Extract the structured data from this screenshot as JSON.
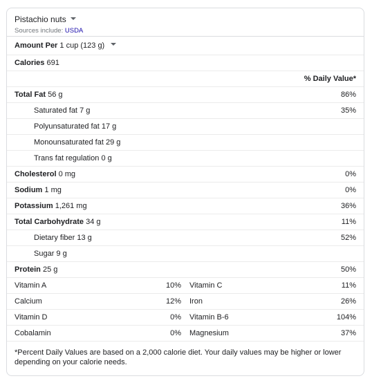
{
  "food": {
    "name": "Pistachio nuts",
    "sources_prefix": "Sources include: ",
    "source_link": "USDA"
  },
  "amount": {
    "label": "Amount Per",
    "serving": "1 cup (123 g)"
  },
  "calories": {
    "label": "Calories",
    "value": "691"
  },
  "dv_header": "% Daily Value*",
  "nutrients": [
    {
      "label": "Total Fat",
      "amount": "56 g",
      "dv": "86%",
      "bold": true
    },
    {
      "label": "Saturated fat",
      "amount": "7 g",
      "dv": "35%",
      "bold": false
    },
    {
      "label": "Polyunsaturated fat",
      "amount": "17 g",
      "dv": "",
      "bold": false
    },
    {
      "label": "Monounsaturated fat",
      "amount": "29 g",
      "dv": "",
      "bold": false
    },
    {
      "label": "Trans fat regulation",
      "amount": "0 g",
      "dv": "",
      "bold": false
    },
    {
      "label": "Cholesterol",
      "amount": "0 mg",
      "dv": "0%",
      "bold": true
    },
    {
      "label": "Sodium",
      "amount": "1 mg",
      "dv": "0%",
      "bold": true
    },
    {
      "label": "Potassium",
      "amount": "1,261 mg",
      "dv": "36%",
      "bold": true
    },
    {
      "label": "Total Carbohydrate",
      "amount": "34 g",
      "dv": "11%",
      "bold": true
    },
    {
      "label": "Dietary fiber",
      "amount": "13 g",
      "dv": "52%",
      "bold": false
    },
    {
      "label": "Sugar",
      "amount": "9 g",
      "dv": "",
      "bold": false
    },
    {
      "label": "Protein",
      "amount": "25 g",
      "dv": "50%",
      "bold": true
    }
  ],
  "vitamins": [
    {
      "l1": "Vitamin A",
      "v1": "10%",
      "l2": "Vitamin C",
      "v2": "11%"
    },
    {
      "l1": "Calcium",
      "v1": "12%",
      "l2": "Iron",
      "v2": "26%"
    },
    {
      "l1": "Vitamin D",
      "v1": "0%",
      "l2": "Vitamin B-6",
      "v2": "104%"
    },
    {
      "l1": "Cobalamin",
      "v1": "0%",
      "l2": "Magnesium",
      "v2": "37%"
    }
  ],
  "footnote": "*Percent Daily Values are based on a 2,000 calorie diet. Your daily values may be higher or lower depending on your calorie needs."
}
